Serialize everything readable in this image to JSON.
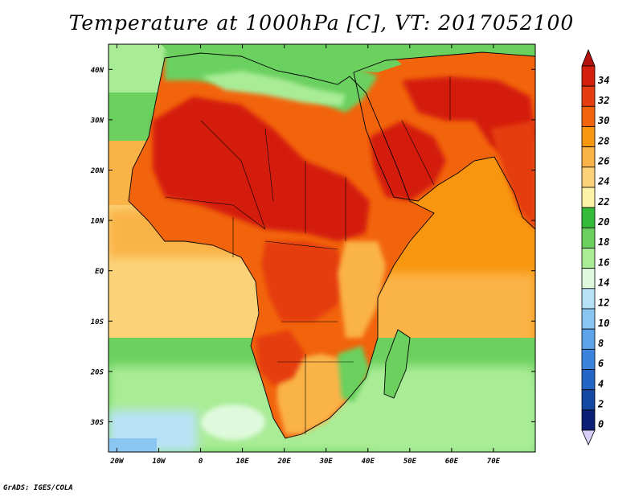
{
  "title": "Temperature at 1000hPa [C], VT: 2017052100",
  "credit": "GrADS: IGES/COLA",
  "axes": {
    "lat_labels": [
      "40N",
      "30N",
      "20N",
      "10N",
      "EQ",
      "10S",
      "20S",
      "30S"
    ],
    "lat_values": [
      40,
      30,
      20,
      10,
      0,
      -10,
      -20,
      -30
    ],
    "lon_labels": [
      "20W",
      "10W",
      "0",
      "10E",
      "20E",
      "30E",
      "40E",
      "50E",
      "60E",
      "70E"
    ],
    "lon_values": [
      -20,
      -10,
      0,
      10,
      20,
      30,
      40,
      50,
      60,
      70
    ],
    "lon_range": [
      -22,
      80
    ],
    "lat_range": [
      -36,
      45
    ]
  },
  "colorbar": {
    "labels": [
      "34",
      "32",
      "30",
      "28",
      "26",
      "24",
      "22",
      "20",
      "18",
      "16",
      "14",
      "12",
      "10",
      "8",
      "6",
      "4",
      "2",
      "0"
    ],
    "colors": [
      "#d41f0d",
      "#e53c10",
      "#f2640c",
      "#f8960f",
      "#fab347",
      "#fcd278",
      "#fdf2a6",
      "#35bb3a",
      "#6bd05e",
      "#a9ec96",
      "#def9dc",
      "#b7e2f6",
      "#8bc6f2",
      "#5da4eb",
      "#3a84dd",
      "#2166c6",
      "#1447a3",
      "#0c1f74"
    ],
    "top_arrow_color": "#b3120d",
    "bottom_arrow_color": "#d7cff5"
  },
  "colors": {
    "ocean_warm": "#fcd278",
    "ocean_hot": "#f8960f",
    "ocean_cool": "#6bd05e",
    "ocean_cold": "#b7e2f6",
    "land_hot": "#d41f0d",
    "land_warm": "#f2640c",
    "land_mild": "#fab347",
    "land_cool": "#6bd05e",
    "border": "#000000"
  }
}
